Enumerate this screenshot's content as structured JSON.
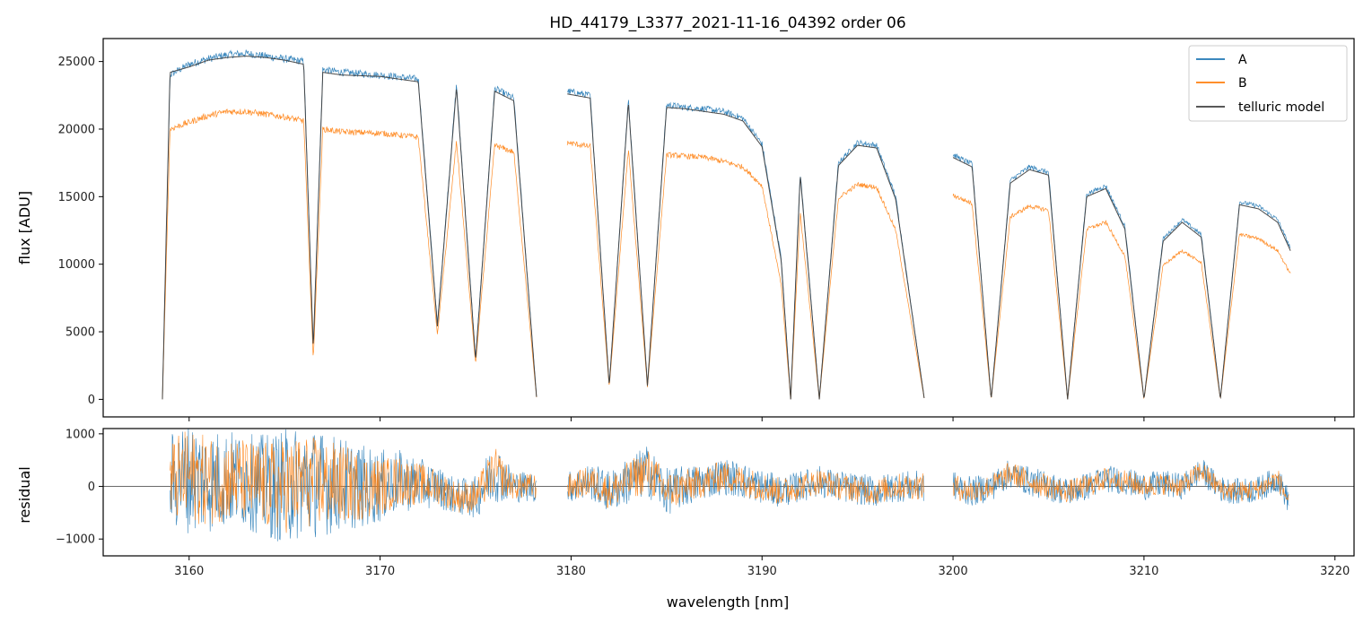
{
  "chart_data": [
    {
      "type": "line",
      "title": "HD_44179_L3377_2021-11-16_04392  order 06",
      "xlabel": "",
      "ylabel": "flux [ADU]",
      "xlim": [
        3155.5,
        3221
      ],
      "ylim": [
        -1300,
        26700
      ],
      "xticks": [
        3160,
        3170,
        3180,
        3190,
        3200,
        3210,
        3220
      ],
      "yticks": [
        0,
        5000,
        10000,
        15000,
        20000,
        25000
      ],
      "ytick_labels": [
        "0",
        "5000",
        "10000",
        "15000",
        "20000",
        "25000"
      ],
      "legend": {
        "placement": "top-right",
        "entries": [
          "A",
          "B",
          "telluric model"
        ]
      },
      "grid": false,
      "segments": [
        [
          3158.6,
          3178.2
        ],
        [
          3179.8,
          3198.5
        ],
        [
          3200.0,
          3217.7
        ]
      ],
      "series": [
        {
          "name": "A",
          "color": "#1f77b4",
          "x": [
            3158.6,
            3159,
            3160,
            3161,
            3162,
            3163,
            3164,
            3165,
            3166,
            3166.5,
            3167,
            3168,
            3170,
            3172,
            3173,
            3174,
            3175,
            3176,
            3177,
            3178.2,
            3179.8,
            3181,
            3182,
            3183,
            3184,
            3185,
            3186,
            3187,
            3188,
            3189,
            3190,
            3191,
            3191.5,
            3192,
            3193,
            3194,
            3195,
            3196,
            3197,
            3198.5,
            3200,
            3201,
            3202,
            3203,
            3204,
            3205,
            3206,
            3207,
            3208,
            3209,
            3210,
            3211,
            3212,
            3213,
            3214,
            3215,
            3216,
            3217,
            3217.7
          ],
          "y": [
            0,
            24000,
            24800,
            25200,
            25500,
            25600,
            25400,
            25200,
            25000,
            3800,
            24400,
            24200,
            24000,
            23700,
            5600,
            23300,
            3000,
            23000,
            22300,
            0,
            22800,
            22500,
            1000,
            22200,
            1000,
            21800,
            21600,
            21500,
            21300,
            20800,
            18900,
            10500,
            0,
            16800,
            0,
            17500,
            19000,
            18800,
            15000,
            0,
            18100,
            17400,
            0,
            16200,
            17200,
            16800,
            0,
            15200,
            15800,
            12800,
            0,
            11900,
            13300,
            12200,
            0,
            14600,
            14300,
            13300,
            11100
          ]
        },
        {
          "name": "B",
          "color": "#ff7f0e",
          "x": [
            3158.6,
            3159,
            3160,
            3161,
            3162,
            3163,
            3164,
            3165,
            3166,
            3166.5,
            3167,
            3168,
            3170,
            3172,
            3173,
            3174,
            3175,
            3176,
            3177,
            3178.2,
            3179.8,
            3181,
            3182,
            3183,
            3184,
            3185,
            3186,
            3187,
            3188,
            3189,
            3190,
            3191,
            3191.5,
            3192,
            3193,
            3194,
            3195,
            3196,
            3197,
            3198.5,
            3200,
            3201,
            3202,
            3203,
            3204,
            3205,
            3206,
            3207,
            3208,
            3209,
            3210,
            3211,
            3212,
            3213,
            3214,
            3215,
            3216,
            3217,
            3217.7
          ],
          "y": [
            0,
            20000,
            20500,
            21000,
            21300,
            21300,
            21100,
            20900,
            20600,
            2900,
            20000,
            19800,
            19700,
            19400,
            4800,
            19100,
            2600,
            18800,
            18300,
            0,
            19000,
            18700,
            900,
            18500,
            900,
            18100,
            18000,
            17900,
            17600,
            17200,
            15800,
            8500,
            0,
            13800,
            0,
            14900,
            15900,
            15700,
            12500,
            0,
            15100,
            14500,
            0,
            13500,
            14300,
            14000,
            0,
            12600,
            13100,
            10600,
            0,
            9900,
            11000,
            10100,
            0,
            12200,
            11900,
            11000,
            9200
          ]
        },
        {
          "name": "telluric model",
          "color": "#404040",
          "x": [
            3158.6,
            3159,
            3160,
            3161,
            3162,
            3163,
            3164,
            3165,
            3166,
            3166.5,
            3167,
            3168,
            3170,
            3172,
            3173,
            3174,
            3175,
            3176,
            3177,
            3178.2,
            3179.8,
            3181,
            3182,
            3183,
            3184,
            3185,
            3186,
            3187,
            3188,
            3189,
            3190,
            3191,
            3191.5,
            3192,
            3193,
            3194,
            3195,
            3196,
            3197,
            3198.5,
            3200,
            3201,
            3202,
            3203,
            3204,
            3205,
            3206,
            3207,
            3208,
            3209,
            3210,
            3211,
            3212,
            3213,
            3214,
            3215,
            3216,
            3217,
            3217.7
          ],
          "y": [
            0,
            24200,
            24600,
            25100,
            25300,
            25400,
            25300,
            25100,
            24800,
            3700,
            24200,
            24000,
            23900,
            23500,
            5400,
            23100,
            2900,
            22800,
            22100,
            0,
            22600,
            22300,
            1000,
            22000,
            1000,
            21600,
            21500,
            21300,
            21100,
            20600,
            18700,
            10300,
            0,
            16600,
            0,
            17300,
            18800,
            18600,
            14800,
            0,
            17900,
            17200,
            0,
            16000,
            17000,
            16600,
            0,
            15000,
            15600,
            12600,
            0,
            11700,
            13100,
            12000,
            0,
            14400,
            14100,
            13100,
            10900
          ]
        }
      ]
    },
    {
      "type": "line",
      "title": "",
      "xlabel": "wavelength [nm]",
      "ylabel": "residual",
      "xlim": [
        3155.5,
        3221
      ],
      "ylim": [
        -1320,
        1100
      ],
      "xticks": [
        3160,
        3170,
        3180,
        3190,
        3200,
        3210,
        3220
      ],
      "xtick_labels": [
        "3160",
        "3170",
        "3180",
        "3190",
        "3200",
        "3210",
        "3220"
      ],
      "yticks": [
        -1000,
        0,
        1000
      ],
      "ytick_labels": [
        "−1000",
        "0",
        "1000"
      ],
      "zero_line": true,
      "grid": false,
      "series": [
        {
          "name": "A",
          "color": "#1f77b4",
          "x": [
            3159,
            3160,
            3161,
            3162,
            3163,
            3164,
            3165,
            3166,
            3167,
            3168,
            3169,
            3170,
            3171,
            3172,
            3173,
            3174,
            3175,
            3176,
            3177,
            3178,
            3180,
            3181,
            3182,
            3183,
            3184,
            3185,
            3186,
            3187,
            3188,
            3189,
            3190,
            3191,
            3192,
            3193,
            3194,
            3195,
            3196,
            3197,
            3198,
            3200,
            3201,
            3202,
            3203,
            3204,
            3205,
            3206,
            3207,
            3208,
            3209,
            3210,
            3211,
            3212,
            3213,
            3214,
            3215,
            3216,
            3217,
            3217.6
          ],
          "amplitude": [
            900,
            1100,
            1000,
            950,
            900,
            1000,
            1100,
            1100,
            1000,
            900,
            800,
            700,
            600,
            500,
            400,
            350,
            400,
            600,
            300,
            300,
            300,
            350,
            400,
            450,
            500,
            450,
            400,
            350,
            350,
            350,
            330,
            300,
            300,
            300,
            300,
            300,
            300,
            300,
            300,
            300,
            280,
            280,
            280,
            280,
            280,
            270,
            270,
            260,
            260,
            260,
            260,
            250,
            250,
            250,
            250,
            250,
            250,
            250
          ],
          "offset": [
            100,
            200,
            100,
            150,
            100,
            0,
            0,
            100,
            50,
            50,
            0,
            0,
            100,
            50,
            0,
            -200,
            -200,
            300,
            0,
            0,
            0,
            100,
            -100,
            100,
            300,
            -100,
            0,
            100,
            200,
            100,
            0,
            -100,
            0,
            100,
            0,
            -50,
            -100,
            0,
            0,
            0,
            -100,
            0,
            250,
            100,
            0,
            -100,
            0,
            150,
            100,
            0,
            50,
            0,
            300,
            -50,
            -100,
            -50,
            150,
            -300
          ]
        },
        {
          "name": "B",
          "color": "#ff7f0e",
          "x": [
            3159,
            3160,
            3161,
            3162,
            3163,
            3164,
            3165,
            3166,
            3167,
            3168,
            3169,
            3170,
            3171,
            3172,
            3173,
            3174,
            3175,
            3176,
            3177,
            3178,
            3180,
            3181,
            3182,
            3183,
            3184,
            3185,
            3186,
            3187,
            3188,
            3189,
            3190,
            3191,
            3192,
            3193,
            3194,
            3195,
            3196,
            3197,
            3198,
            3200,
            3201,
            3202,
            3203,
            3204,
            3205,
            3206,
            3207,
            3208,
            3209,
            3210,
            3211,
            3212,
            3213,
            3214,
            3215,
            3216,
            3217,
            3217.6
          ],
          "amplitude": [
            800,
            900,
            850,
            800,
            800,
            850,
            900,
            900,
            850,
            750,
            650,
            550,
            480,
            400,
            330,
            300,
            320,
            450,
            250,
            250,
            250,
            300,
            330,
            380,
            420,
            380,
            330,
            300,
            290,
            290,
            280,
            260,
            250,
            250,
            250,
            250,
            250,
            250,
            250,
            250,
            230,
            230,
            230,
            230,
            230,
            220,
            220,
            220,
            210,
            210,
            210,
            210,
            200,
            200,
            200,
            200,
            200,
            200
          ],
          "offset": [
            100,
            200,
            100,
            150,
            100,
            0,
            0,
            100,
            50,
            50,
            0,
            0,
            100,
            50,
            0,
            -200,
            -200,
            300,
            0,
            0,
            0,
            100,
            -100,
            100,
            300,
            -100,
            0,
            100,
            200,
            100,
            0,
            -100,
            0,
            100,
            0,
            -50,
            -100,
            0,
            0,
            0,
            -100,
            0,
            250,
            100,
            0,
            -100,
            0,
            150,
            100,
            0,
            50,
            0,
            300,
            -50,
            -100,
            -50,
            150,
            -300
          ]
        }
      ]
    }
  ]
}
